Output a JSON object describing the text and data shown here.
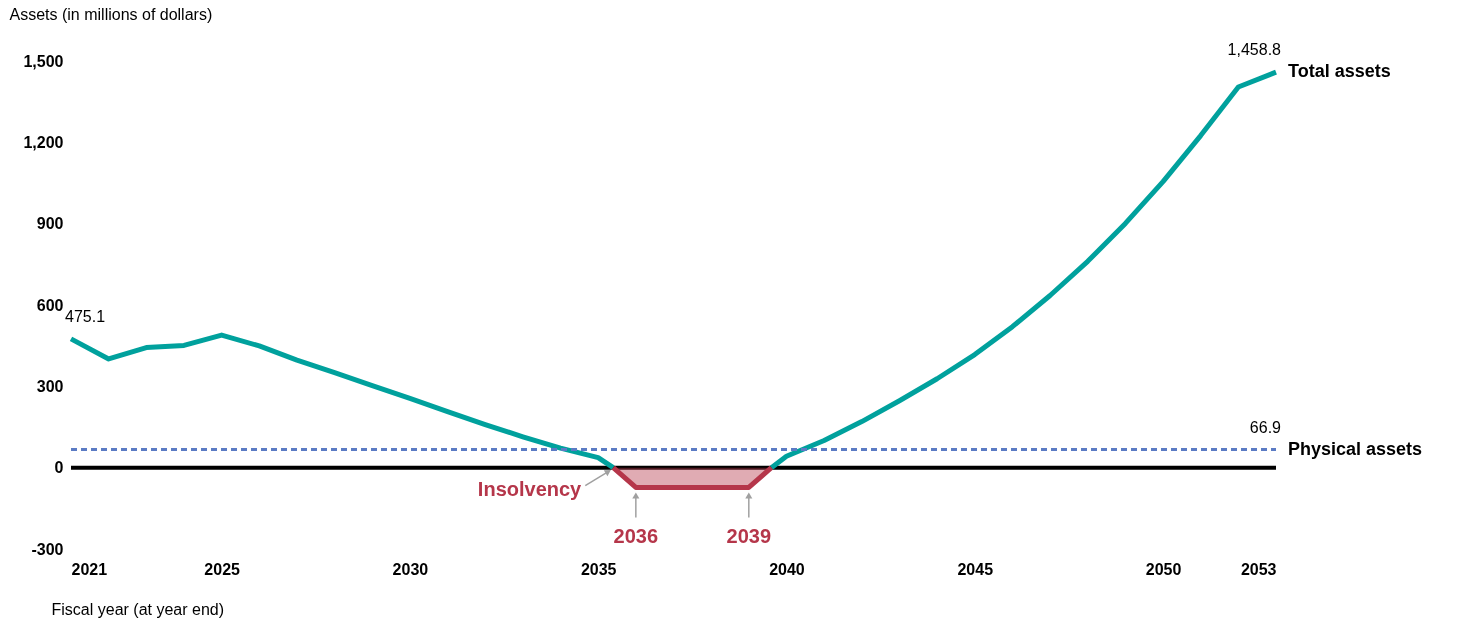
{
  "chart_data": {
    "type": "line",
    "ylabel": "Assets (in millions of dollars)",
    "xlabel": "Fiscal year (at year end)",
    "xlim": [
      2021,
      2053
    ],
    "xticks": [
      2021,
      2025,
      2030,
      2035,
      2040,
      2045,
      2050,
      2053
    ],
    "ylim": [
      -300,
      1500
    ],
    "yticks": [
      -300,
      0,
      300,
      600,
      900,
      {
        "value": 1200,
        "label": "1,200"
      },
      {
        "value": 1500,
        "label": "1,500"
      }
    ],
    "grid": false,
    "legend": false,
    "marker": "none",
    "series": [
      {
        "name": "Total assets",
        "type": "line",
        "color": "#00a19d",
        "line_style": "solid",
        "x": [
          2021,
          2022,
          2023,
          2024,
          2025,
          2026,
          2027,
          2028,
          2029,
          2030,
          2031,
          2032,
          2033,
          2034,
          2035,
          2035.4,
          2037,
          2039.6,
          2040,
          2041,
          2042,
          2043,
          2044,
          2045,
          2046,
          2047,
          2048,
          2049,
          2050,
          2051,
          2052,
          2053
        ],
        "values": [
          475.1,
          401,
          443,
          451,
          489,
          449,
          397,
          351,
          303,
          256,
          207,
          159,
          114,
          72,
          37,
          0,
          null,
          0,
          42,
          100,
          170,
          247,
          328,
          417,
          520,
          635,
          761,
          901,
          1055,
          1225,
          1404,
          1458.8
        ],
        "value_labels": [
          "475.1",
          null,
          null,
          null,
          null,
          null,
          null,
          null,
          null,
          null,
          null,
          null,
          null,
          null,
          null,
          null,
          null,
          null,
          null,
          null,
          null,
          null,
          null,
          null,
          null,
          null,
          null,
          null,
          null,
          null,
          null,
          "1,458.8"
        ]
      },
      {
        "type": "area",
        "color": "#b5364a",
        "x": [
          2035.4,
          2036,
          2039,
          2039.6
        ],
        "values": [
          0,
          -73,
          -73,
          0
        ]
      },
      {
        "name": "Physical assets",
        "type": "line",
        "color": "#5b7bc4",
        "line_style": "dashed",
        "x": [
          2021,
          2053
        ],
        "values": [
          66.9,
          66.9
        ],
        "value_labels": [
          null,
          "66.9"
        ]
      }
    ],
    "ref_lines": [
      {
        "axis": "y",
        "value": 0,
        "color": "#000000"
      }
    ],
    "annotations": [
      {
        "text": "Insolvency",
        "x": 2035.4,
        "y": 0
      },
      {
        "text": "2036",
        "x": 2036,
        "y": -73
      },
      {
        "text": "2039",
        "x": 2039,
        "y": -73
      }
    ]
  }
}
